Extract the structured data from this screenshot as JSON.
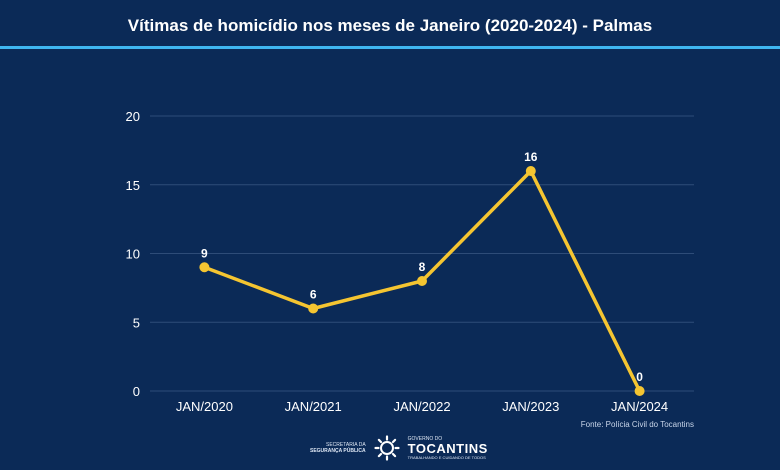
{
  "title": "Vítimas de homicídio nos meses de Janeiro (2020-2024) - Palmas",
  "colors": {
    "background": "#0b2a57",
    "accent_rule": "#3fb6f0",
    "line": "#f5c531",
    "grid": "#2e4c78"
  },
  "chart_data": {
    "type": "line",
    "title": "Vítimas de homicídio nos meses de Janeiro (2020-2024) - Palmas",
    "xlabel": "",
    "ylabel": "",
    "categories": [
      "JAN/2020",
      "JAN/2021",
      "JAN/2022",
      "JAN/2023",
      "JAN/2024"
    ],
    "series": [
      {
        "values": [
          9,
          6,
          8,
          16,
          0
        ]
      }
    ],
    "ylim": [
      0,
      20
    ],
    "yticks": [
      0,
      5,
      10,
      15,
      20
    ],
    "grid": true,
    "data_labels": true
  },
  "source": "Fonte: Polícia Civil do Tocantins",
  "footer": {
    "secretaria_line1": "SECRETARIA DA",
    "secretaria_line2": "SEGURANÇA PÚBLICA",
    "gov_label": "GOVERNO DO",
    "state_name": "TOCANTINS",
    "tagline": "TRABALHANDO E CUIDANDO DE TODOS",
    "logo_icon": "tocantins-sun-logo-icon"
  }
}
